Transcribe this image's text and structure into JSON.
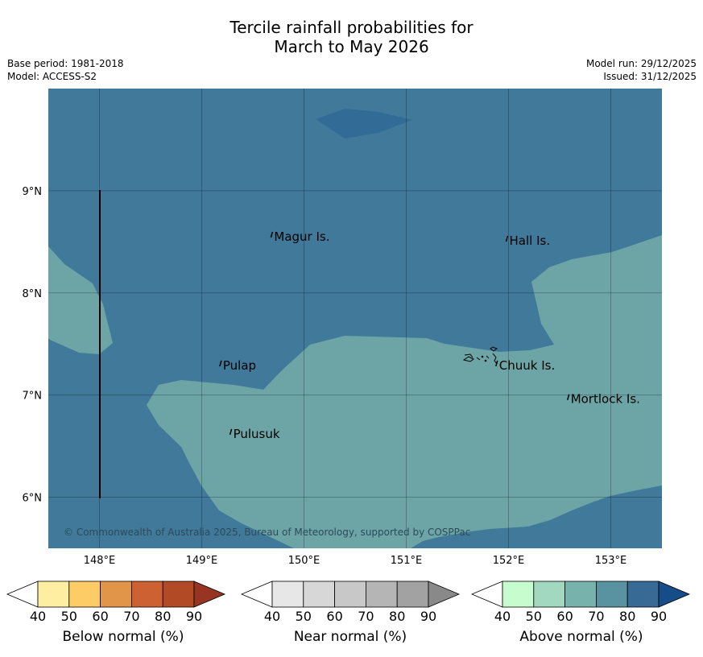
{
  "title_line1": "Tercile rainfall probabilities for",
  "title_line2": "March to May 2026",
  "meta": {
    "base_period": "Base period: 1981-2018",
    "model": "Model: ACCESS-S2",
    "model_run": "Model run: 29/12/2025",
    "issued": "Issued: 31/12/2025"
  },
  "map": {
    "lon_range": [
      147.5,
      153.5
    ],
    "lat_range": [
      5.5,
      10.0
    ],
    "lon_ticks": [
      "148°E",
      "149°E",
      "150°E",
      "151°E",
      "152°E",
      "153°E"
    ],
    "lat_ticks": [
      "6°N",
      "7°N",
      "8°N",
      "9°N"
    ],
    "places": [
      {
        "name": "Magur Is.",
        "lon": 149.7,
        "lat": 8.55
      },
      {
        "name": "Hall Is.",
        "lon": 152.0,
        "lat": 8.51
      },
      {
        "name": "Pulap",
        "lon": 149.2,
        "lat": 7.29
      },
      {
        "name": "Chuuk Is.",
        "lon": 151.9,
        "lat": 7.29
      },
      {
        "name": "Mortlock Is.",
        "lon": 152.6,
        "lat": 6.96
      },
      {
        "name": "Pulusuk",
        "lon": 149.3,
        "lat": 6.62
      }
    ],
    "copyright": "© Commonwealth of Australia 2025, Bureau of Meteorology, supported by COSPPac",
    "colors": {
      "above_70_80": "#41799a",
      "above_60_70": "#6da5a7",
      "above_80_90": "#336b97"
    }
  },
  "colorbars": [
    {
      "label": "Below normal (%)",
      "ticks": [
        "40",
        "50",
        "60",
        "70",
        "80",
        "90"
      ],
      "colors": [
        "#ffffff",
        "#feeea2",
        "#fecc66",
        "#e09548",
        "#cd6132",
        "#b34a26",
        "#973522"
      ]
    },
    {
      "label": "Near normal (%)",
      "ticks": [
        "40",
        "50",
        "60",
        "70",
        "80",
        "90"
      ],
      "colors": [
        "#ffffff",
        "#e7e7e7",
        "#d7d7d7",
        "#c8c8c8",
        "#b5b5b5",
        "#a2a2a2",
        "#898989"
      ]
    },
    {
      "label": "Above normal (%)",
      "ticks": [
        "40",
        "50",
        "60",
        "70",
        "80",
        "90"
      ],
      "colors": [
        "#ffffff",
        "#c7fdce",
        "#a2d8bf",
        "#78b2ac",
        "#5992a0",
        "#376a95",
        "#164c87"
      ]
    }
  ]
}
